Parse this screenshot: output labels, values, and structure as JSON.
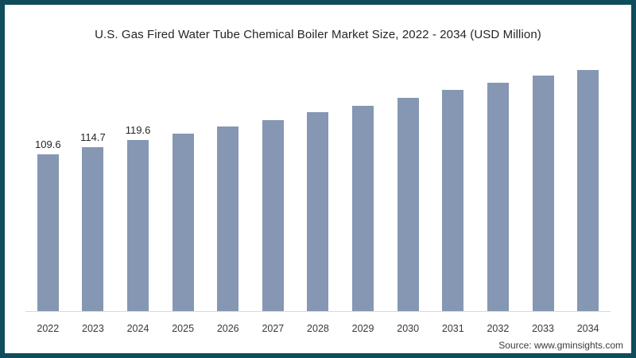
{
  "title": "U.S. Gas Fired Water Tube Chemical Boiler Market Size, 2022 - 2034 (USD Million)",
  "source": "Source: www.gminsights.com",
  "colors": {
    "frame_border": "#0f4c5c",
    "bar_fill": "#8597b2",
    "axis_line": "#d9d9d9",
    "title_text": "#262626",
    "background": "#ffffff"
  },
  "chart_data": {
    "type": "bar",
    "title": "U.S. Gas Fired Water Tube Chemical Boiler Market Size, 2022 - 2034 (USD Million)",
    "categories": [
      "2022",
      "2023",
      "2024",
      "2025",
      "2026",
      "2027",
      "2028",
      "2029",
      "2030",
      "2031",
      "2032",
      "2033",
      "2034"
    ],
    "values": [
      109.6,
      114.7,
      119.6,
      124.3,
      129.3,
      133.8,
      139.3,
      143.8,
      149.4,
      154.9,
      159.9,
      165.0,
      168.9
    ],
    "value_labels_shown_for": [
      0,
      1,
      2
    ],
    "value_label_texts": [
      "109.6",
      "114.7",
      "119.6"
    ],
    "xlabel": "",
    "ylabel": "USD Million",
    "ylim": [
      0,
      175
    ],
    "grid": false,
    "legend": "none",
    "bar_color": "#8597b2"
  }
}
